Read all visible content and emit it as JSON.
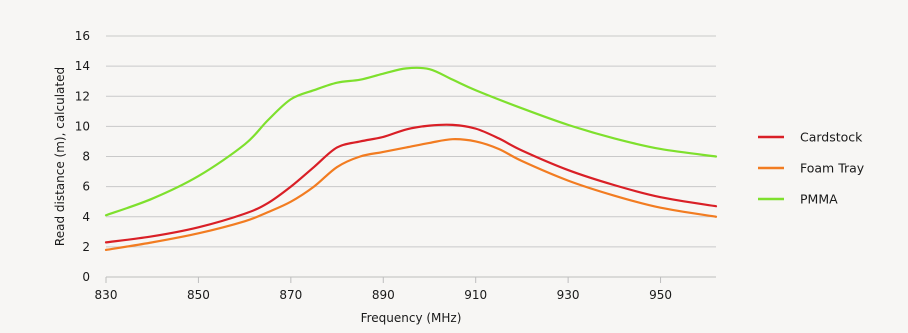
{
  "chart_data": {
    "type": "line",
    "title": "",
    "xlabel": "Frequency (MHz)",
    "ylabel": "Read distance (m), calculated",
    "xlim": [
      830,
      962
    ],
    "ylim": [
      0,
      16
    ],
    "x_ticks": [
      830,
      850,
      870,
      890,
      910,
      930,
      950
    ],
    "y_ticks": [
      0,
      2,
      4,
      6,
      8,
      10,
      12,
      14,
      16
    ],
    "grid": "horizontal",
    "legend_position": "right",
    "series": [
      {
        "name": "Cardstock",
        "color": "#d91f26",
        "points": [
          [
            830,
            2.3
          ],
          [
            840,
            2.7
          ],
          [
            850,
            3.3
          ],
          [
            860,
            4.2
          ],
          [
            865,
            4.9
          ],
          [
            870,
            6.0
          ],
          [
            875,
            7.3
          ],
          [
            880,
            8.6
          ],
          [
            885,
            9.0
          ],
          [
            890,
            9.3
          ],
          [
            895,
            9.8
          ],
          [
            900,
            10.05
          ],
          [
            905,
            10.1
          ],
          [
            910,
            9.85
          ],
          [
            915,
            9.2
          ],
          [
            920,
            8.4
          ],
          [
            930,
            7.1
          ],
          [
            940,
            6.1
          ],
          [
            950,
            5.3
          ],
          [
            962,
            4.7
          ]
        ]
      },
      {
        "name": "Foam Tray",
        "color": "#f27c21",
        "points": [
          [
            830,
            1.8
          ],
          [
            840,
            2.3
          ],
          [
            850,
            2.9
          ],
          [
            860,
            3.7
          ],
          [
            865,
            4.3
          ],
          [
            870,
            5.0
          ],
          [
            875,
            6.0
          ],
          [
            880,
            7.3
          ],
          [
            885,
            8.0
          ],
          [
            890,
            8.3
          ],
          [
            895,
            8.6
          ],
          [
            900,
            8.9
          ],
          [
            905,
            9.15
          ],
          [
            910,
            9.0
          ],
          [
            915,
            8.5
          ],
          [
            920,
            7.7
          ],
          [
            930,
            6.4
          ],
          [
            940,
            5.4
          ],
          [
            950,
            4.6
          ],
          [
            962,
            4.0
          ]
        ]
      },
      {
        "name": "PMMA",
        "color": "#7ee02d",
        "points": [
          [
            830,
            4.1
          ],
          [
            840,
            5.2
          ],
          [
            850,
            6.7
          ],
          [
            860,
            8.8
          ],
          [
            865,
            10.4
          ],
          [
            870,
            11.8
          ],
          [
            875,
            12.4
          ],
          [
            880,
            12.9
          ],
          [
            885,
            13.1
          ],
          [
            890,
            13.5
          ],
          [
            895,
            13.85
          ],
          [
            900,
            13.8
          ],
          [
            905,
            13.1
          ],
          [
            910,
            12.4
          ],
          [
            920,
            11.2
          ],
          [
            930,
            10.1
          ],
          [
            940,
            9.2
          ],
          [
            950,
            8.5
          ],
          [
            962,
            8.0
          ]
        ]
      }
    ]
  }
}
